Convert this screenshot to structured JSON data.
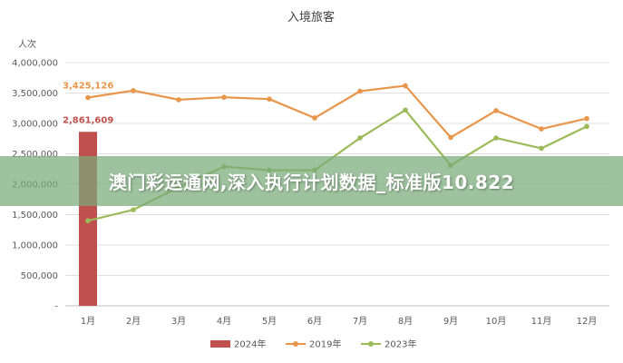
{
  "overlay": {
    "text": "澳门彩运通网,深入执行计划数据_标准版10.822"
  },
  "colors": {
    "series_2024": "#c0504d",
    "series_2019": "#e8964b",
    "series_2023": "#9bbb59",
    "grid": "#e0e0e0",
    "axis": "#bfbfbf"
  },
  "chart_data": {
    "type": "bar",
    "title": "入境旅客",
    "ylabel": "人次",
    "xlabel": "",
    "categories": [
      "1月",
      "2月",
      "3月",
      "4月",
      "5月",
      "6月",
      "7月",
      "8月",
      "9月",
      "10月",
      "11月",
      "12月"
    ],
    "ylim": [
      0,
      4000000
    ],
    "yticks": [
      0,
      500000,
      1000000,
      1500000,
      2000000,
      2500000,
      3000000,
      3500000,
      4000000
    ],
    "ytick_labels": [
      "-",
      "500,000",
      "1,000,000",
      "1,500,000",
      "2,000,000",
      "2,500,000",
      "3,000,000",
      "3,500,000",
      "4,000,000"
    ],
    "grid": true,
    "legend_position": "bottom",
    "series": [
      {
        "name": "2024年",
        "kind": "bar",
        "values": [
          2861609,
          null,
          null,
          null,
          null,
          null,
          null,
          null,
          null,
          null,
          null,
          null
        ],
        "labels": [
          "2,861,609"
        ]
      },
      {
        "name": "2019年",
        "kind": "line",
        "values": [
          3425126,
          3540000,
          3390000,
          3430000,
          3400000,
          3090000,
          3530000,
          3620000,
          2770000,
          3210000,
          2910000,
          3080000
        ],
        "labels": [
          "3,425,126"
        ]
      },
      {
        "name": "2023年",
        "kind": "line",
        "values": [
          1400000,
          1580000,
          1950000,
          2290000,
          2230000,
          2230000,
          2760000,
          3220000,
          2310000,
          2760000,
          2590000,
          2950000
        ]
      }
    ]
  }
}
